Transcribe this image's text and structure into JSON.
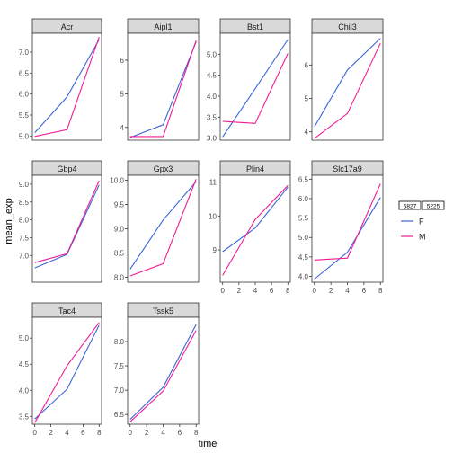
{
  "chart_data": {
    "type": "line",
    "xlabel": "time",
    "ylabel": "mean_exp",
    "x_ticks": [
      0,
      2,
      4,
      6,
      8
    ],
    "legend": {
      "position": "right",
      "title_glyphs": [
        "6827",
        "5225"
      ],
      "entries": [
        {
          "label": "F",
          "color": "#3B63D9"
        },
        {
          "label": "M",
          "color": "#F01C94"
        }
      ]
    },
    "panels": [
      {
        "title": "Acr",
        "ylim": [
          4.9,
          7.45
        ],
        "y_ticks": [
          5.0,
          5.5,
          6.0,
          6.5,
          7.0
        ],
        "series": [
          {
            "key": "F",
            "x": [
              0,
              4,
              8
            ],
            "y": [
              5.08,
              5.93,
              7.3
            ]
          },
          {
            "key": "M",
            "x": [
              0,
              4,
              8
            ],
            "y": [
              4.99,
              5.15,
              7.36
            ]
          }
        ]
      },
      {
        "title": "Aipl1",
        "ylim": [
          3.62,
          6.8
        ],
        "y_ticks": [
          4,
          5,
          6
        ],
        "series": [
          {
            "key": "F",
            "x": [
              0,
              4,
              8
            ],
            "y": [
              3.7,
              4.08,
              6.55
            ]
          },
          {
            "key": "M",
            "x": [
              0,
              4,
              8
            ],
            "y": [
              3.73,
              3.73,
              6.58
            ]
          }
        ]
      },
      {
        "title": "Bst1",
        "ylim": [
          2.95,
          5.5
        ],
        "y_ticks": [
          3.0,
          3.5,
          4.0,
          4.5,
          5.0
        ],
        "series": [
          {
            "key": "F",
            "x": [
              0,
              4,
              8
            ],
            "y": [
              3.03,
              4.18,
              5.35
            ]
          },
          {
            "key": "M",
            "x": [
              0,
              4,
              8
            ],
            "y": [
              3.4,
              3.35,
              5.02
            ]
          }
        ]
      },
      {
        "title": "Chil3",
        "ylim": [
          3.75,
          6.95
        ],
        "y_ticks": [
          4,
          5,
          6
        ],
        "series": [
          {
            "key": "F",
            "x": [
              0,
              4,
              8
            ],
            "y": [
              4.15,
              5.85,
              6.8
            ]
          },
          {
            "key": "M",
            "x": [
              0,
              4,
              8
            ],
            "y": [
              3.8,
              4.55,
              6.65
            ]
          }
        ]
      },
      {
        "title": "Gbp4",
        "ylim": [
          6.25,
          9.25
        ],
        "y_ticks": [
          7.0,
          7.5,
          8.0,
          8.5,
          9.0
        ],
        "series": [
          {
            "key": "F",
            "x": [
              0,
              4,
              8
            ],
            "y": [
              6.65,
              7.03,
              8.98
            ]
          },
          {
            "key": "M",
            "x": [
              0,
              4,
              8
            ],
            "y": [
              6.8,
              7.05,
              9.1
            ]
          }
        ]
      },
      {
        "title": "Gpx3",
        "ylim": [
          7.9,
          10.1
        ],
        "y_ticks": [
          8.0,
          8.5,
          9.0,
          9.5,
          10.0
        ],
        "series": [
          {
            "key": "F",
            "x": [
              0,
              4,
              8
            ],
            "y": [
              8.17,
              9.18,
              9.97
            ]
          },
          {
            "key": "M",
            "x": [
              0,
              4,
              8
            ],
            "y": [
              8.03,
              8.28,
              10.02
            ]
          }
        ]
      },
      {
        "title": "Plin4",
        "ylim": [
          8.05,
          11.2
        ],
        "y_ticks": [
          9,
          10,
          11
        ],
        "series": [
          {
            "key": "F",
            "x": [
              0,
              4,
              8
            ],
            "y": [
              8.95,
              9.65,
              10.85
            ]
          },
          {
            "key": "M",
            "x": [
              0,
              4,
              8
            ],
            "y": [
              8.25,
              9.9,
              10.9
            ]
          }
        ]
      },
      {
        "title": "Slc17a9",
        "ylim": [
          3.85,
          6.6
        ],
        "y_ticks": [
          4.0,
          4.5,
          5.0,
          5.5,
          6.0,
          6.5
        ],
        "series": [
          {
            "key": "F",
            "x": [
              0,
              4,
              8
            ],
            "y": [
              3.93,
              4.62,
              6.03
            ]
          },
          {
            "key": "M",
            "x": [
              0,
              4,
              8
            ],
            "y": [
              4.42,
              4.47,
              6.38
            ]
          }
        ]
      },
      {
        "title": "Tac4",
        "ylim": [
          3.35,
          5.4
        ],
        "y_ticks": [
          3.5,
          4.0,
          4.5,
          5.0
        ],
        "series": [
          {
            "key": "F",
            "x": [
              0,
              4,
              8
            ],
            "y": [
              3.45,
              4.02,
              5.25
            ]
          },
          {
            "key": "M",
            "x": [
              0,
              4,
              8
            ],
            "y": [
              3.38,
              4.47,
              5.3
            ]
          }
        ]
      },
      {
        "title": "Tssk5",
        "ylim": [
          6.3,
          8.5
        ],
        "y_ticks": [
          6.5,
          7.0,
          7.5,
          8.0
        ],
        "series": [
          {
            "key": "F",
            "x": [
              0,
              4,
              8
            ],
            "y": [
              6.4,
              7.06,
              8.35
            ]
          },
          {
            "key": "M",
            "x": [
              0,
              4,
              8
            ],
            "y": [
              6.35,
              6.98,
              8.23
            ]
          }
        ]
      }
    ]
  }
}
